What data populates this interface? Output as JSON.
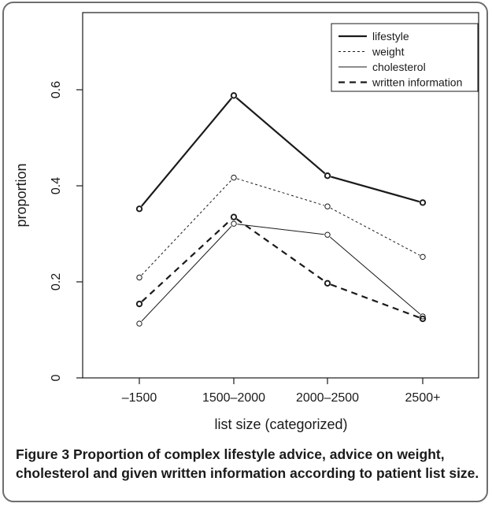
{
  "chart_data": {
    "type": "line",
    "xlabel": "list size (categorized)",
    "ylabel": "proportion",
    "categories": [
      "–1500",
      "1500–2000",
      "2000–2500",
      "2500+"
    ],
    "yticks": [
      0,
      0.2,
      0.4,
      0.6
    ],
    "ytick_labels": [
      "0",
      "0.2",
      "0.4",
      "0.6"
    ],
    "ylim": [
      0,
      0.75
    ],
    "legend_position": "top-right",
    "grid": false,
    "series": [
      {
        "name": "lifestyle",
        "values": [
          0.352,
          0.588,
          0.421,
          0.365
        ],
        "style": "solid-thick"
      },
      {
        "name": "weight",
        "values": [
          0.209,
          0.417,
          0.357,
          0.252
        ],
        "style": "dotted-thin"
      },
      {
        "name": "cholesterol",
        "values": [
          0.113,
          0.321,
          0.298,
          0.128
        ],
        "style": "solid-thin"
      },
      {
        "name": "written information",
        "values": [
          0.154,
          0.335,
          0.197,
          0.123
        ],
        "style": "dashed-thick"
      }
    ]
  },
  "caption": {
    "figure_label": "Figure 3",
    "text": "Proportion of complex lifestyle advice, advice on weight, cholesterol and given written information according to patient list size."
  },
  "colors": {
    "ink": "#1a1a1a",
    "frame": "#6e6e6e"
  }
}
